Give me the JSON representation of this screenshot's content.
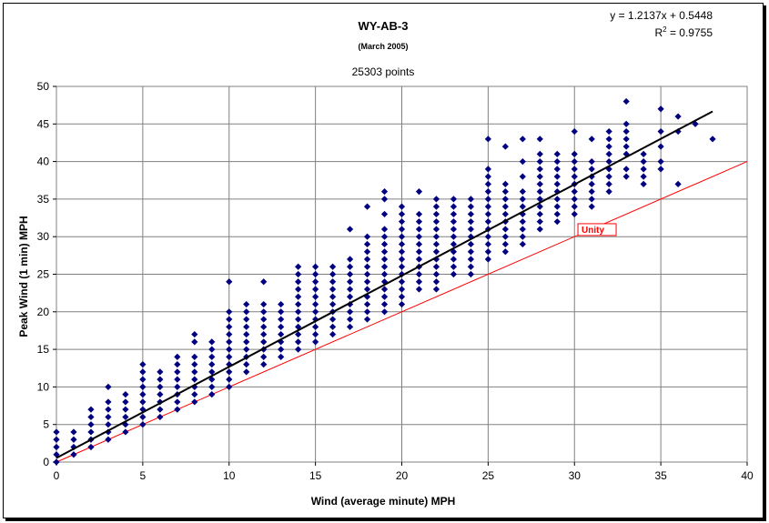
{
  "chart_data": {
    "type": "scatter",
    "title": "WY-AB-3",
    "subtitle": "(March 2005)",
    "points_label": "25303 points",
    "xlabel": "Wind (average minute) MPH",
    "ylabel": "Peak Wind (1 min) MPH",
    "xlim": [
      0,
      40
    ],
    "ylim": [
      0,
      50
    ],
    "x_ticks": [
      0,
      5,
      10,
      15,
      20,
      25,
      30,
      35,
      40
    ],
    "y_ticks": [
      0,
      5,
      10,
      15,
      20,
      25,
      30,
      35,
      40,
      45,
      50
    ],
    "grid": true,
    "trendline": {
      "slope": 1.2137,
      "intercept": 0.5448,
      "x_range": [
        0,
        38
      ],
      "equation_text": "y = 1.2137x + 0.5448",
      "r2_prefix": "R",
      "r2_exp": "2",
      "r2_value_text": " = 0.9755"
    },
    "unity": {
      "label": "Unity",
      "label_x": 30.2,
      "label_y": 31
    },
    "colors": {
      "points": "#000080",
      "trend": "#000000",
      "unity": "#ff0000",
      "grid": "#808080"
    },
    "columns": [
      {
        "x": 0,
        "y": [
          0,
          1,
          2,
          3,
          4
        ]
      },
      {
        "x": 1,
        "y": [
          1,
          2,
          3,
          4
        ]
      },
      {
        "x": 2,
        "y": [
          2,
          3,
          4,
          5,
          6,
          7
        ]
      },
      {
        "x": 3,
        "y": [
          3,
          4,
          5,
          6,
          7,
          8,
          10
        ]
      },
      {
        "x": 4,
        "y": [
          4,
          5,
          6,
          7,
          8,
          9
        ]
      },
      {
        "x": 5,
        "y": [
          5,
          6,
          7,
          8,
          9,
          10,
          11,
          12,
          13
        ]
      },
      {
        "x": 6,
        "y": [
          6,
          7,
          8,
          9,
          10,
          11,
          12
        ]
      },
      {
        "x": 7,
        "y": [
          7,
          8,
          9,
          10,
          11,
          12,
          13,
          14
        ]
      },
      {
        "x": 8,
        "y": [
          8,
          9,
          10,
          11,
          12,
          13,
          14,
          16,
          17
        ]
      },
      {
        "x": 9,
        "y": [
          9,
          10,
          11,
          12,
          13,
          14,
          15,
          16
        ]
      },
      {
        "x": 10,
        "y": [
          10,
          11,
          12,
          13,
          14,
          15,
          16,
          17,
          18,
          19,
          20,
          24
        ]
      },
      {
        "x": 11,
        "y": [
          12,
          13,
          14,
          15,
          16,
          17,
          18,
          19,
          20,
          21
        ]
      },
      {
        "x": 12,
        "y": [
          13,
          14,
          15,
          16,
          17,
          18,
          19,
          20,
          21,
          24
        ]
      },
      {
        "x": 13,
        "y": [
          14,
          15,
          16,
          17,
          18,
          19,
          20,
          21
        ]
      },
      {
        "x": 14,
        "y": [
          15,
          16,
          17,
          18,
          19,
          20,
          21,
          22,
          23,
          24,
          25,
          26
        ]
      },
      {
        "x": 15,
        "y": [
          16,
          17,
          18,
          19,
          20,
          21,
          22,
          23,
          24,
          25,
          26
        ]
      },
      {
        "x": 16,
        "y": [
          17,
          18,
          19,
          20,
          21,
          22,
          23,
          24,
          25,
          26
        ]
      },
      {
        "x": 17,
        "y": [
          18,
          19,
          20,
          21,
          22,
          23,
          24,
          25,
          26,
          27,
          31
        ]
      },
      {
        "x": 18,
        "y": [
          19,
          20,
          21,
          22,
          23,
          24,
          25,
          26,
          27,
          28,
          29,
          30,
          34
        ]
      },
      {
        "x": 19,
        "y": [
          20,
          21,
          22,
          23,
          24,
          25,
          26,
          27,
          28,
          29,
          30,
          31,
          33,
          35,
          36
        ]
      },
      {
        "x": 20,
        "y": [
          21,
          22,
          23,
          24,
          25,
          26,
          27,
          28,
          29,
          30,
          31,
          32,
          33,
          34
        ]
      },
      {
        "x": 21,
        "y": [
          23,
          24,
          25,
          26,
          27,
          28,
          29,
          30,
          31,
          32,
          33,
          36
        ]
      },
      {
        "x": 22,
        "y": [
          23,
          24,
          25,
          26,
          27,
          28,
          29,
          30,
          31,
          32,
          33,
          34,
          35
        ]
      },
      {
        "x": 23,
        "y": [
          25,
          26,
          27,
          28,
          29,
          30,
          31,
          32,
          33,
          34,
          35
        ]
      },
      {
        "x": 24,
        "y": [
          25,
          26,
          27,
          28,
          29,
          30,
          31,
          32,
          33,
          34,
          35
        ]
      },
      {
        "x": 25,
        "y": [
          27,
          28,
          29,
          30,
          31,
          32,
          33,
          34,
          35,
          36,
          37,
          38,
          39,
          43
        ]
      },
      {
        "x": 26,
        "y": [
          28,
          29,
          30,
          31,
          32,
          33,
          34,
          35,
          36,
          37,
          42
        ]
      },
      {
        "x": 27,
        "y": [
          29,
          30,
          31,
          32,
          33,
          34,
          35,
          36,
          38,
          40,
          43
        ]
      },
      {
        "x": 28,
        "y": [
          31,
          32,
          33,
          34,
          35,
          36,
          37,
          38,
          39,
          40,
          41,
          43
        ]
      },
      {
        "x": 29,
        "y": [
          32,
          33,
          34,
          35,
          36,
          37,
          38,
          39,
          40,
          41
        ]
      },
      {
        "x": 30,
        "y": [
          33,
          34,
          35,
          36,
          37,
          38,
          39,
          40,
          41,
          44
        ]
      },
      {
        "x": 31,
        "y": [
          34,
          35,
          36,
          37,
          38,
          39,
          40,
          43
        ]
      },
      {
        "x": 32,
        "y": [
          36,
          37,
          38,
          39,
          40,
          41,
          42,
          43,
          44
        ]
      },
      {
        "x": 33,
        "y": [
          38,
          39,
          41,
          42,
          43,
          44,
          45,
          48
        ]
      },
      {
        "x": 34,
        "y": [
          37,
          38,
          39,
          40,
          41
        ]
      },
      {
        "x": 35,
        "y": [
          39,
          40,
          42,
          44,
          47
        ]
      },
      {
        "x": 36,
        "y": [
          37,
          44,
          46
        ]
      },
      {
        "x": 37,
        "y": [
          45
        ]
      },
      {
        "x": 38,
        "y": [
          43
        ]
      }
    ]
  }
}
